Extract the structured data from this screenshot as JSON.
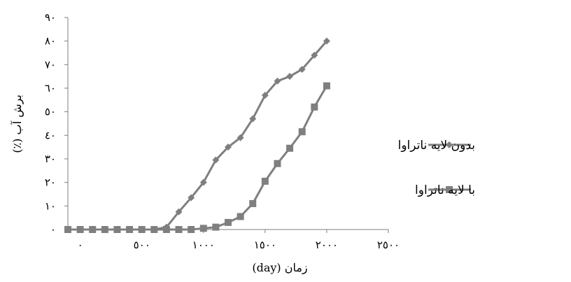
{
  "chart_data": {
    "type": "line",
    "title": "",
    "xlabel": "زمان (day)",
    "ylabel": "برش آب (٪)",
    "xlim": [
      -100,
      2500
    ],
    "ylim": [
      0,
      90
    ],
    "x_ticks": [
      0,
      500,
      1000,
      1500,
      2000,
      2500
    ],
    "x_tick_labels": [
      "٠",
      "٥٠٠",
      "١٠٠٠",
      "١٥٠٠",
      "٢٠٠٠",
      "٢٥٠٠"
    ],
    "y_ticks": [
      0,
      10,
      20,
      30,
      40,
      50,
      60,
      70,
      80,
      90
    ],
    "y_tick_labels": [
      "٠",
      "١٠",
      "٢٠",
      "٣٠",
      "٤٠",
      "٥٠",
      "٦٠",
      "٧٠",
      "٨٠",
      "٩٠"
    ],
    "grid": false,
    "legend_position": "right",
    "series": [
      {
        "name": "بدون لایه ناتراوا",
        "marker": "diamond",
        "color": "#7f7f7f",
        "x": [
          -100,
          0,
          100,
          200,
          300,
          400,
          500,
          600,
          700,
          800,
          900,
          1000,
          1100,
          1200,
          1300,
          1400,
          1500,
          1600,
          1700,
          1800,
          1900,
          2000
        ],
        "y": [
          0,
          0,
          0,
          0,
          0,
          0,
          0,
          0,
          1,
          7.5,
          13.5,
          20,
          29.5,
          35,
          39,
          47,
          57,
          63,
          65,
          68,
          74,
          80
        ]
      },
      {
        "name": "با لایه ناتراوا",
        "marker": "square",
        "color": "#7f7f7f",
        "x": [
          -100,
          0,
          100,
          200,
          300,
          400,
          500,
          600,
          700,
          800,
          900,
          1000,
          1100,
          1200,
          1300,
          1400,
          1500,
          1600,
          1700,
          1800,
          1900,
          2000
        ],
        "y": [
          0,
          0,
          0,
          0,
          0,
          0,
          0,
          0,
          0,
          0,
          0,
          0.5,
          1,
          3,
          5.5,
          11,
          20.5,
          28,
          34.5,
          41.5,
          52,
          61
        ]
      }
    ]
  }
}
